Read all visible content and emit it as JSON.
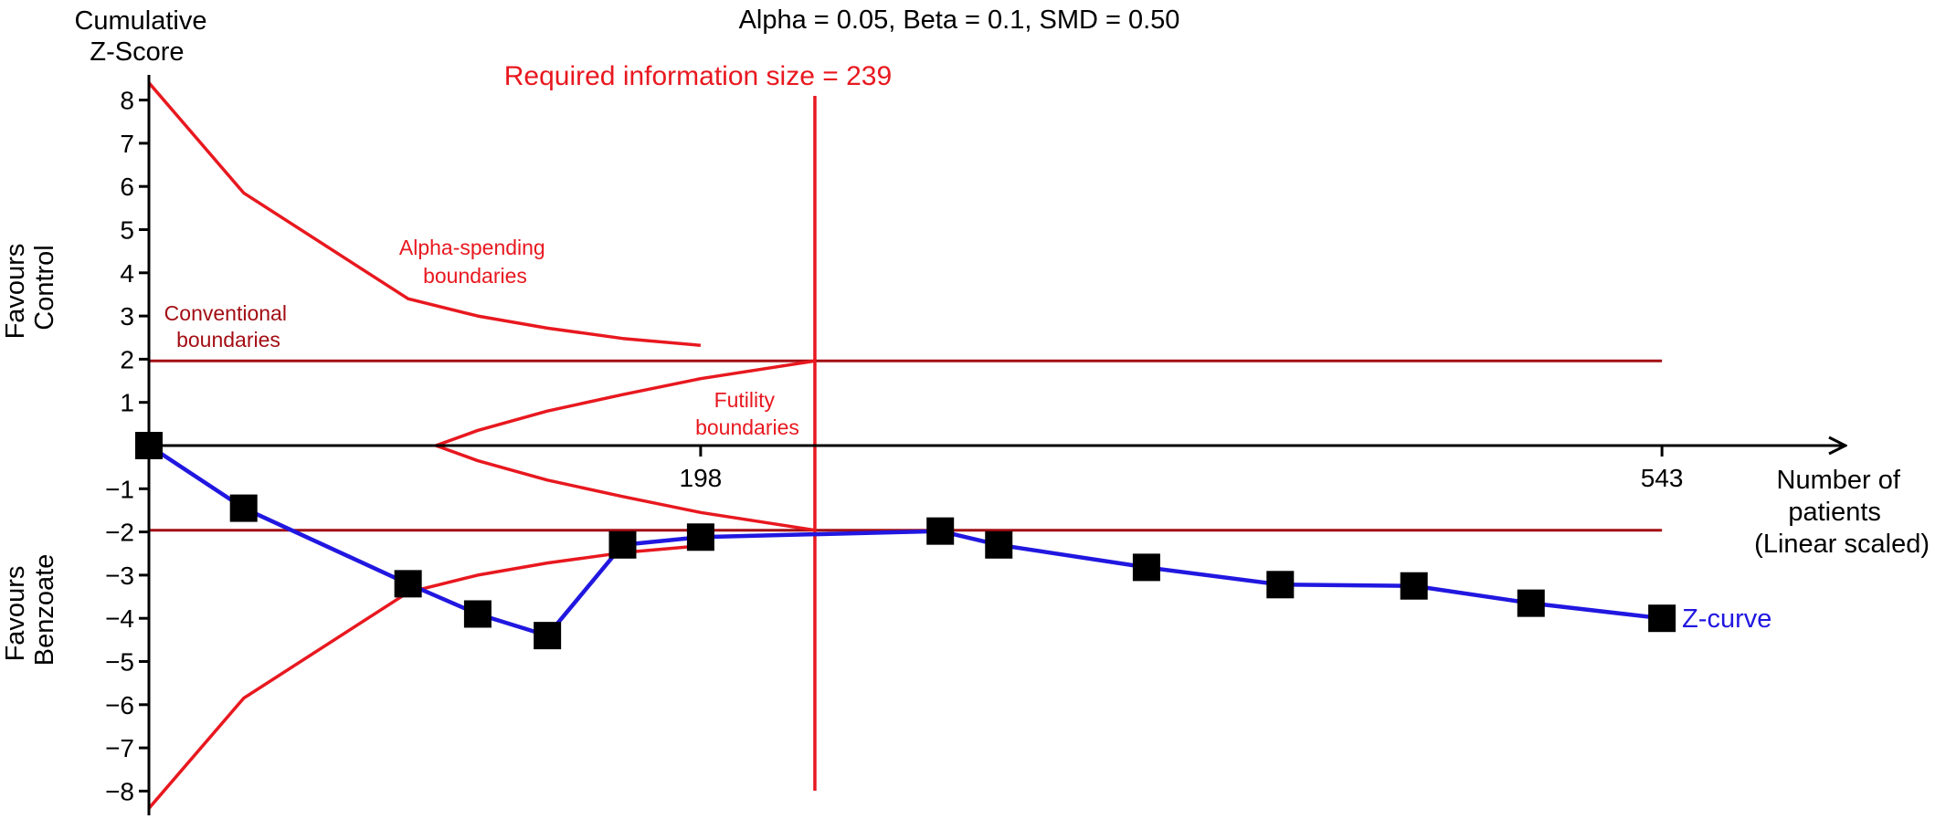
{
  "chart_data": {
    "type": "line",
    "title": "Alpha = 0.05, Beta = 0.1, SMD = 0.50",
    "ylabel_lines": [
      "Cumulative",
      "Z-Score"
    ],
    "xlabel_lines": [
      "Number of",
      "patients",
      "(Linear scaled)"
    ],
    "ylim": [
      -8.5,
      8.5
    ],
    "xlim": [
      0,
      600
    ],
    "yticks": [
      8,
      7,
      6,
      5,
      4,
      3,
      2,
      1,
      -1,
      -2,
      -3,
      -4,
      -5,
      -6,
      -7,
      -8
    ],
    "ytick_labels": [
      "8",
      "7",
      "6",
      "5",
      "4",
      "3",
      "2",
      "1",
      "−1",
      "−2",
      "−3",
      "−4",
      "−5",
      "−6",
      "−7",
      "−8"
    ],
    "xticks": [
      198,
      543
    ],
    "xtick_labels": [
      "198",
      "543"
    ],
    "favours_top_lines": [
      "Favours",
      "Control"
    ],
    "favours_bottom_lines": [
      "Favours",
      "Benzoate"
    ],
    "ris": {
      "x": 239,
      "label": "Required information size = 239",
      "color": "#e8181f"
    },
    "conventional_boundary": {
      "value": 1.96,
      "x_end": 543,
      "label_lines": [
        "Conventional",
        "boundaries"
      ],
      "color": "#a30d14"
    },
    "alpha_spending": {
      "label_lines": [
        "Alpha-spending",
        "boundaries"
      ],
      "color": "#e8181f",
      "upper": {
        "x": [
          0,
          34,
          93,
          118,
          143,
          170,
          198
        ],
        "y": [
          8.4,
          5.85,
          3.4,
          3.0,
          2.72,
          2.48,
          2.32
        ]
      },
      "lower": {
        "x": [
          0,
          34,
          93,
          118,
          143,
          170,
          198
        ],
        "y": [
          -8.4,
          -5.85,
          -3.4,
          -3.0,
          -2.72,
          -2.48,
          -2.32
        ]
      }
    },
    "futility": {
      "label_lines": [
        "Futility",
        "boundaries"
      ],
      "color": "#e8181f",
      "upper": {
        "x": [
          103,
          118,
          143,
          170,
          198,
          239
        ],
        "y": [
          0.0,
          0.35,
          0.8,
          1.18,
          1.55,
          1.96
        ]
      },
      "lower": {
        "x": [
          103,
          118,
          143,
          170,
          198,
          239
        ],
        "y": [
          0.0,
          -0.35,
          -0.8,
          -1.18,
          -1.55,
          -1.96
        ]
      }
    },
    "series": [
      {
        "name": "Z-curve",
        "color": "#2117e0",
        "x": [
          0,
          34,
          93,
          118,
          143,
          170,
          198,
          284,
          305,
          358,
          406,
          454,
          496,
          543
        ],
        "y": [
          0.0,
          -1.45,
          -3.2,
          -3.9,
          -4.4,
          -2.3,
          -2.12,
          -1.98,
          -2.3,
          -2.82,
          -3.22,
          -3.25,
          -3.65,
          -4.0
        ]
      }
    ]
  }
}
